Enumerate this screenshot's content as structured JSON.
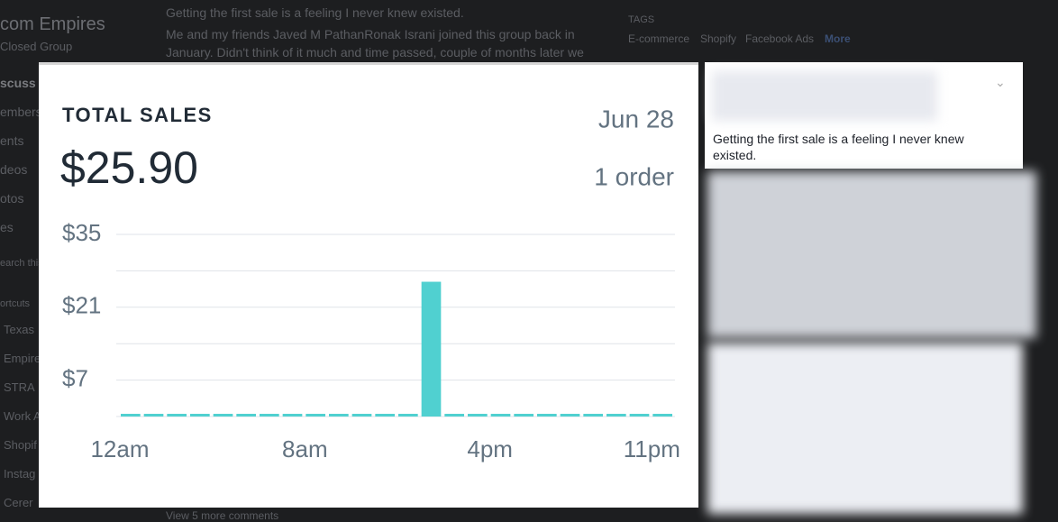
{
  "background": {
    "group_title": "com Empires",
    "group_type": "Closed Group",
    "nav": [
      "scuss",
      "embers",
      "ents",
      "deos",
      "otos",
      "es"
    ],
    "search": "earch this",
    "shortcuts_heading": "ortcuts",
    "shortcuts": [
      "Texas",
      "Empire",
      "STRA",
      "Work A",
      "Shopif",
      "Instag",
      "Cerer"
    ],
    "post_title": "Getting the first sale is a feeling I never knew existed.",
    "post_body": [
      "Me and my friends Javed M PathanRonak Israni joined this group back in",
      "January. Didn't think of it much and time passed, couple of months later we"
    ],
    "tags_heading": "TAGS",
    "tags": [
      "E-commerce",
      "Shopify",
      "Facebook Ads"
    ],
    "tags_more": "More",
    "view_more": "View 5 more comments"
  },
  "post_card": {
    "text": "Getting the first sale is a feeling I never knew existed."
  },
  "chart_data": {
    "type": "bar",
    "title": "TOTAL SALES",
    "total": "$25.90",
    "date": "Jun 28",
    "orders": "1 order",
    "categories": [
      "12am",
      null,
      null,
      null,
      null,
      null,
      null,
      null,
      "8am",
      null,
      null,
      null,
      null,
      null,
      null,
      null,
      "4pm",
      null,
      null,
      null,
      null,
      null,
      null,
      "11pm"
    ],
    "values": [
      0,
      0,
      0,
      0,
      0,
      0,
      0,
      0,
      0,
      0,
      0,
      0,
      0,
      25.9,
      0,
      0,
      0,
      0,
      0,
      0,
      0,
      0,
      0,
      0
    ],
    "color": "#50d0d0",
    "ylim": [
      0,
      35
    ],
    "yticks": [
      {
        "value": 7,
        "label": "$7"
      },
      {
        "value": 21,
        "label": "$21"
      },
      {
        "value": 35,
        "label": "$35"
      }
    ],
    "minor_yticks": [
      0,
      14,
      28
    ],
    "grid": true
  }
}
